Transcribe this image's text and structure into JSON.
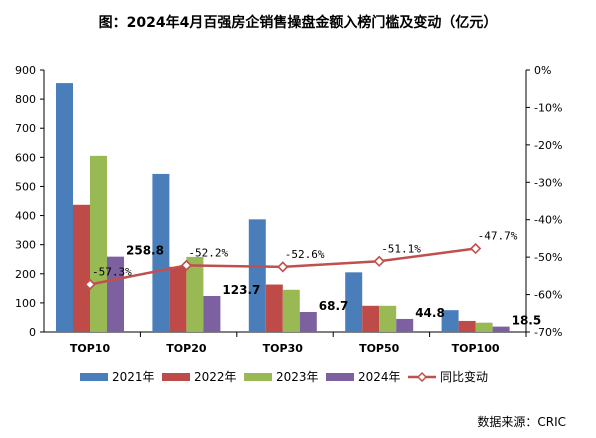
{
  "chart_data": {
    "type": "bar",
    "title": "图：2024年4月百强房企销售操盘金额入榜门槛及变动（亿元）",
    "categories": [
      "TOP10",
      "TOP20",
      "TOP30",
      "TOP50",
      "TOP100"
    ],
    "series": [
      {
        "name": "2021年",
        "color": "#4a7ebb",
        "values": [
          855,
          543,
          387,
          205,
          75
        ]
      },
      {
        "name": "2022年",
        "color": "#be4b48",
        "values": [
          437,
          224,
          163,
          90,
          38
        ]
      },
      {
        "name": "2023年",
        "color": "#98b954",
        "values": [
          605,
          258,
          145,
          90,
          32
        ]
      },
      {
        "name": "2024年",
        "color": "#7d60a0",
        "values": [
          258.8,
          123.7,
          68.7,
          44.8,
          18.5
        ]
      }
    ],
    "line_series": {
      "name": "同比变动",
      "color": "#c0504d",
      "values": [
        -57.3,
        -52.2,
        -52.6,
        -51.1,
        -47.7
      ]
    },
    "bar_labels": [
      "258.8",
      "123.7",
      "68.7",
      "44.8",
      "18.5"
    ],
    "line_labels": [
      "-57.3%",
      "-52.2%",
      "-52.6%",
      "-51.1%",
      "-47.7%"
    ],
    "y_left": {
      "min": 0,
      "max": 900,
      "step": 100,
      "ticks": [
        "0",
        "100",
        "200",
        "300",
        "400",
        "500",
        "600",
        "700",
        "800",
        "900"
      ]
    },
    "y_right": {
      "min": -70,
      "max": 0,
      "step": 10,
      "ticks": [
        "-70%",
        "-60%",
        "-50%",
        "-40%",
        "-30%",
        "-20%",
        "-10%",
        "0%"
      ]
    },
    "grid": false,
    "legend": "bottom",
    "source": "数据来源：CRIC"
  }
}
